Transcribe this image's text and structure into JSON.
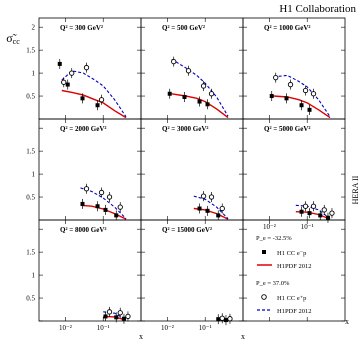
{
  "header": {
    "collaboration": "H1 Collaboration",
    "side_label": "HERA II"
  },
  "ylabel_main": "σ̃",
  "ylabel_sub": "cc",
  "xlabel": "x",
  "colors": {
    "data": "#000000",
    "fit_em": "#dd0000",
    "fit_ep": "#0000cc"
  },
  "legend": {
    "em_pol": "P_e = -32.5%",
    "em_data": "H1 CC e⁻p",
    "em_fit": "H1PDF 2012",
    "ep_pol": "P_e = 37.0%",
    "ep_data": "H1 CC e⁺p",
    "ep_fit": "H1PDF 2012"
  },
  "chart_data": {
    "type": "scatter",
    "xscale": "log",
    "xlim": [
      0.002,
      1
    ],
    "ylim": [
      0,
      2.2
    ],
    "yticks": [
      0,
      0.5,
      1,
      1.5,
      2
    ],
    "xticks": [
      0.01,
      0.1
    ],
    "xticklabels": [
      "10⁻²",
      "10⁻¹"
    ],
    "panels": [
      {
        "q2": "Q² = 300 GeV²",
        "em": {
          "x": [
            0.008,
            0.013,
            0.032,
            0.08
          ],
          "y": [
            1.2,
            0.75,
            0.45,
            0.3
          ]
        },
        "ep": {
          "x": [
            0.008,
            0.013,
            0.032,
            0.08
          ],
          "y": [
            0.8,
            1.0,
            1.12,
            0.42
          ]
        },
        "fit_em": {
          "x": [
            0.008,
            0.015,
            0.03,
            0.06,
            0.1,
            0.2,
            0.4
          ],
          "y": [
            0.62,
            0.58,
            0.52,
            0.42,
            0.35,
            0.18,
            0.03
          ]
        },
        "fit_ep": {
          "x": [
            0.008,
            0.015,
            0.03,
            0.06,
            0.1,
            0.2,
            0.4
          ],
          "y": [
            0.85,
            1.05,
            1.0,
            0.85,
            0.72,
            0.42,
            0.05
          ]
        }
      },
      {
        "q2": "Q² = 500 GeV²",
        "em": {
          "x": [
            0.013,
            0.032,
            0.08,
            0.13
          ],
          "y": [
            0.55,
            0.48,
            0.38,
            0.32
          ]
        },
        "ep": {
          "x": [
            0.013,
            0.032,
            0.08,
            0.13
          ],
          "y": [
            1.25,
            1.05,
            0.72,
            0.55
          ]
        },
        "fit_em": {
          "x": [
            0.013,
            0.03,
            0.06,
            0.1,
            0.2,
            0.4
          ],
          "y": [
            0.55,
            0.5,
            0.45,
            0.38,
            0.22,
            0.03
          ]
        },
        "fit_ep": {
          "x": [
            0.013,
            0.03,
            0.06,
            0.1,
            0.2,
            0.4
          ],
          "y": [
            1.3,
            1.12,
            0.95,
            0.78,
            0.48,
            0.06
          ]
        }
      },
      {
        "q2": "Q² = 1000 GeV²",
        "em": {
          "x": [
            0.013,
            0.032,
            0.08,
            0.13
          ],
          "y": [
            0.5,
            0.45,
            0.3,
            0.2
          ]
        },
        "ep": {
          "x": [
            0.013,
            0.032,
            0.08,
            0.13
          ],
          "y": [
            0.9,
            0.75,
            0.62,
            0.55
          ]
        },
        "fit_em": {
          "x": [
            0.013,
            0.03,
            0.06,
            0.1,
            0.2,
            0.4
          ],
          "y": [
            0.5,
            0.48,
            0.42,
            0.35,
            0.2,
            0.03
          ]
        },
        "fit_ep": {
          "x": [
            0.013,
            0.03,
            0.06,
            0.1,
            0.2,
            0.4
          ],
          "y": [
            0.92,
            0.95,
            0.82,
            0.7,
            0.42,
            0.05
          ]
        }
      },
      {
        "q2": "Q² = 2000 GeV²",
        "em": {
          "x": [
            0.032,
            0.08,
            0.13,
            0.25
          ],
          "y": [
            0.35,
            0.3,
            0.22,
            0.1
          ]
        },
        "ep": {
          "x": [
            0.032,
            0.08,
            0.13,
            0.25
          ],
          "y": [
            0.68,
            0.6,
            0.5,
            0.28
          ]
        },
        "fit_em": {
          "x": [
            0.025,
            0.05,
            0.1,
            0.2,
            0.4
          ],
          "y": [
            0.32,
            0.3,
            0.24,
            0.14,
            0.02
          ]
        },
        "fit_ep": {
          "x": [
            0.025,
            0.05,
            0.1,
            0.2,
            0.4
          ],
          "y": [
            0.7,
            0.62,
            0.48,
            0.28,
            0.03
          ]
        }
      },
      {
        "q2": "Q² = 3000 GeV²",
        "em": {
          "x": [
            0.08,
            0.13,
            0.25
          ],
          "y": [
            0.25,
            0.2,
            0.1
          ]
        },
        "ep": {
          "x": [
            0.08,
            0.13,
            0.25
          ],
          "y": [
            0.52,
            0.5,
            0.25
          ]
        },
        "fit_em": {
          "x": [
            0.05,
            0.1,
            0.2,
            0.4
          ],
          "y": [
            0.25,
            0.22,
            0.14,
            0.02
          ]
        },
        "fit_ep": {
          "x": [
            0.05,
            0.1,
            0.2,
            0.4
          ],
          "y": [
            0.52,
            0.45,
            0.28,
            0.03
          ]
        }
      },
      {
        "q2": "Q² = 5000 GeV²",
        "em": {
          "x": [
            0.08,
            0.13,
            0.25,
            0.4
          ],
          "y": [
            0.18,
            0.15,
            0.1,
            0.05
          ]
        },
        "ep": {
          "x": [
            0.08,
            0.13,
            0.25,
            0.4
          ],
          "y": [
            0.3,
            0.3,
            0.22,
            0.15
          ]
        },
        "fit_em": {
          "x": [
            0.05,
            0.1,
            0.2,
            0.4
          ],
          "y": [
            0.18,
            0.17,
            0.12,
            0.02
          ]
        },
        "fit_ep": {
          "x": [
            0.05,
            0.1,
            0.2,
            0.4
          ],
          "y": [
            0.32,
            0.3,
            0.22,
            0.03
          ]
        }
      },
      {
        "q2": "Q² = 8000 GeV²",
        "em": {
          "x": [
            0.13,
            0.25,
            0.4
          ],
          "y": [
            0.1,
            0.08,
            0.05
          ]
        },
        "ep": {
          "x": [
            0.13,
            0.25,
            0.4
          ],
          "y": [
            0.2,
            0.18,
            0.1
          ]
        },
        "fit_em": {
          "x": [
            0.1,
            0.2,
            0.4
          ],
          "y": [
            0.1,
            0.09,
            0.02
          ]
        },
        "fit_ep": {
          "x": [
            0.1,
            0.2,
            0.4
          ],
          "y": [
            0.2,
            0.17,
            0.03
          ]
        }
      },
      {
        "q2": "Q² = 15000 GeV²",
        "em": {
          "x": [
            0.25,
            0.4
          ],
          "y": [
            0.04,
            0.02
          ]
        },
        "ep": {
          "x": [
            0.25,
            0.4
          ],
          "y": [
            0.06,
            0.05
          ]
        },
        "fit_em": {
          "x": [
            0.2,
            0.4
          ],
          "y": [
            0.04,
            0.01
          ]
        },
        "fit_ep": {
          "x": [
            0.2,
            0.4
          ],
          "y": [
            0.06,
            0.02
          ]
        }
      }
    ]
  }
}
